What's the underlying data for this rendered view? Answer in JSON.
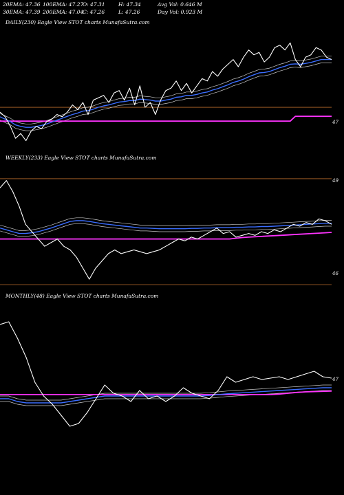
{
  "header": {
    "row1": [
      "20EMA: 47.36",
      "100EMA: 47.27",
      "O: 47.31",
      "H: 47.34",
      "Avg Vol: 0.646  M"
    ],
    "row2": [
      "30EMA: 47.39",
      "200EMA: 47.04",
      "C: 47.26",
      "L: 47.26",
      "Day Vol: 0.923 M"
    ]
  },
  "colors": {
    "background": "#000000",
    "price": "#ffffff",
    "ema_short": "#3a6dff",
    "ema_long": "#ff33ff",
    "band": "#c8c8c8",
    "level": "#b86a2a"
  },
  "chart_data": [
    {
      "type": "line",
      "title": "DAILY(230) Eagle  View  STOT charts MunafaSutra.com",
      "yticks": [
        "47"
      ],
      "series": [
        {
          "values": [
            47.15,
            47.05,
            46.85,
            46.6,
            46.7,
            46.55,
            46.75,
            46.85,
            46.8,
            46.95,
            47.0,
            47.1,
            47.05,
            47.15,
            47.3,
            47.2,
            47.35,
            47.1,
            47.4,
            47.45,
            47.5,
            47.35,
            47.55,
            47.6,
            47.4,
            47.65,
            47.3,
            47.7,
            47.25,
            47.35,
            47.1,
            47.4,
            47.6,
            47.65,
            47.8,
            47.6,
            47.75,
            47.55,
            47.7,
            47.85,
            47.8,
            48.0,
            47.9,
            48.05,
            48.15,
            48.25,
            48.1,
            48.3,
            48.45,
            48.35,
            48.4,
            48.2,
            48.3,
            48.5,
            48.55,
            48.45,
            48.6,
            48.25,
            48.1,
            48.3,
            48.35,
            48.5,
            48.45,
            48.3,
            48.25
          ]
        },
        {
          "values": [
            47.05,
            47.0,
            46.95,
            46.88,
            46.85,
            46.83,
            46.83,
            46.85,
            46.87,
            46.9,
            46.94,
            46.98,
            47.02,
            47.06,
            47.1,
            47.13,
            47.17,
            47.18,
            47.21,
            47.25,
            47.28,
            47.3,
            47.33,
            47.36,
            47.37,
            47.39,
            47.39,
            47.42,
            47.41,
            47.4,
            47.38,
            47.38,
            47.4,
            47.42,
            47.46,
            47.47,
            47.5,
            47.5,
            47.52,
            47.55,
            47.57,
            47.61,
            47.64,
            47.68,
            47.72,
            47.77,
            47.8,
            47.84,
            47.89,
            47.93,
            47.97,
            47.98,
            48.0,
            48.04,
            48.08,
            48.11,
            48.15,
            48.16,
            48.15,
            48.17,
            48.19,
            48.22,
            48.25,
            48.25,
            48.25
          ]
        },
        {
          "values": [
            46.96,
            46.96,
            46.96,
            46.96,
            46.96,
            46.96,
            46.96,
            46.96,
            46.96,
            46.96,
            46.96,
            46.96,
            46.96,
            46.96,
            46.96,
            46.96,
            46.96,
            46.96,
            46.96,
            46.96,
            46.96,
            46.96,
            46.96,
            46.96,
            46.96,
            46.96,
            46.96,
            46.96,
            46.96,
            46.96,
            46.96,
            46.96,
            46.96,
            46.96,
            46.96,
            46.96,
            46.96,
            46.96,
            46.96,
            46.96,
            46.96,
            46.96,
            46.96,
            46.96,
            46.96,
            46.96,
            46.96,
            46.96,
            46.96,
            46.96,
            46.96,
            46.96,
            46.96,
            46.96,
            46.96,
            46.96,
            46.96,
            47.06,
            47.06,
            47.06,
            47.06,
            47.06,
            47.06,
            47.06,
            47.06
          ]
        }
      ]
    },
    {
      "type": "line",
      "title": "WEEKLY(233) Eagle  View  STOT charts MunafaSutra.com",
      "yticks": [
        "49",
        "46"
      ],
      "series": [
        {
          "values": [
            48.7,
            48.9,
            48.6,
            48.2,
            47.7,
            47.5,
            47.3,
            47.1,
            47.2,
            47.3,
            47.1,
            47.0,
            46.8,
            46.5,
            46.2,
            46.5,
            46.7,
            46.9,
            47.0,
            46.9,
            46.95,
            47.0,
            46.95,
            46.9,
            46.95,
            47.0,
            47.1,
            47.2,
            47.3,
            47.25,
            47.35,
            47.3,
            47.4,
            47.5,
            47.6,
            47.45,
            47.5,
            47.35,
            47.4,
            47.45,
            47.4,
            47.5,
            47.45,
            47.55,
            47.5,
            47.6,
            47.7,
            47.65,
            47.75,
            47.7,
            47.85,
            47.8,
            47.7
          ]
        },
        {
          "values": [
            47.6,
            47.55,
            47.5,
            47.45,
            47.45,
            47.47,
            47.5,
            47.55,
            47.6,
            47.66,
            47.72,
            47.78,
            47.8,
            47.8,
            47.78,
            47.75,
            47.72,
            47.7,
            47.68,
            47.66,
            47.64,
            47.62,
            47.6,
            47.6,
            47.59,
            47.58,
            47.58,
            47.58,
            47.58,
            47.58,
            47.59,
            47.59,
            47.6,
            47.6,
            47.61,
            47.61,
            47.61,
            47.62,
            47.62,
            47.63,
            47.63,
            47.64,
            47.64,
            47.65,
            47.66,
            47.67,
            47.68,
            47.69,
            47.7,
            47.71,
            47.72,
            47.73,
            47.73
          ]
        },
        {
          "values": [
            47.3,
            47.3,
            47.3,
            47.3,
            47.3,
            47.3,
            47.3,
            47.3,
            47.3,
            47.3,
            47.3,
            47.3,
            47.3,
            47.3,
            47.3,
            47.3,
            47.3,
            47.3,
            47.3,
            47.3,
            47.3,
            47.3,
            47.3,
            47.3,
            47.3,
            47.3,
            47.3,
            47.3,
            47.3,
            47.3,
            47.3,
            47.3,
            47.3,
            47.3,
            47.3,
            47.3,
            47.3,
            47.32,
            47.34,
            47.35,
            47.36,
            47.37,
            47.38,
            47.39,
            47.4,
            47.41,
            47.42,
            47.43,
            47.44,
            47.45,
            47.46,
            47.47,
            47.48
          ]
        }
      ]
    },
    {
      "type": "line",
      "title": "MONTHLY(48) Eagle  View  STOT charts MunafaSutra.com",
      "yticks": [
        "47"
      ],
      "series": [
        {
          "values": [
            49.8,
            49.9,
            49.3,
            48.6,
            47.7,
            47.2,
            46.9,
            46.5,
            46.1,
            46.2,
            46.6,
            47.1,
            47.6,
            47.3,
            47.2,
            47.0,
            47.4,
            47.1,
            47.2,
            47.0,
            47.2,
            47.5,
            47.3,
            47.2,
            47.1,
            47.4,
            47.9,
            47.7,
            47.8,
            47.9,
            47.8,
            47.85,
            47.9,
            47.8,
            47.9,
            48.0,
            48.1,
            47.9,
            47.85
          ]
        },
        {
          "values": [
            47.1,
            47.1,
            47.0,
            46.95,
            46.95,
            46.95,
            46.95,
            46.95,
            47.0,
            47.05,
            47.1,
            47.15,
            47.2,
            47.2,
            47.2,
            47.2,
            47.2,
            47.2,
            47.2,
            47.2,
            47.2,
            47.2,
            47.2,
            47.2,
            47.22,
            47.25,
            47.28,
            47.3,
            47.32,
            47.34,
            47.36,
            47.38,
            47.4,
            47.42,
            47.44,
            47.46,
            47.48,
            47.5,
            47.5
          ]
        },
        {
          "values": [
            47.25,
            47.25,
            47.25,
            47.25,
            47.25,
            47.25,
            47.25,
            47.25,
            47.25,
            47.25,
            47.25,
            47.25,
            47.25,
            47.25,
            47.25,
            47.25,
            47.25,
            47.25,
            47.25,
            47.25,
            47.25,
            47.25,
            47.25,
            47.25,
            47.25,
            47.25,
            47.25,
            47.25,
            47.25,
            47.25,
            47.25,
            47.25,
            47.27,
            47.3,
            47.33,
            47.35,
            47.36,
            47.37,
            47.38
          ]
        }
      ]
    }
  ]
}
